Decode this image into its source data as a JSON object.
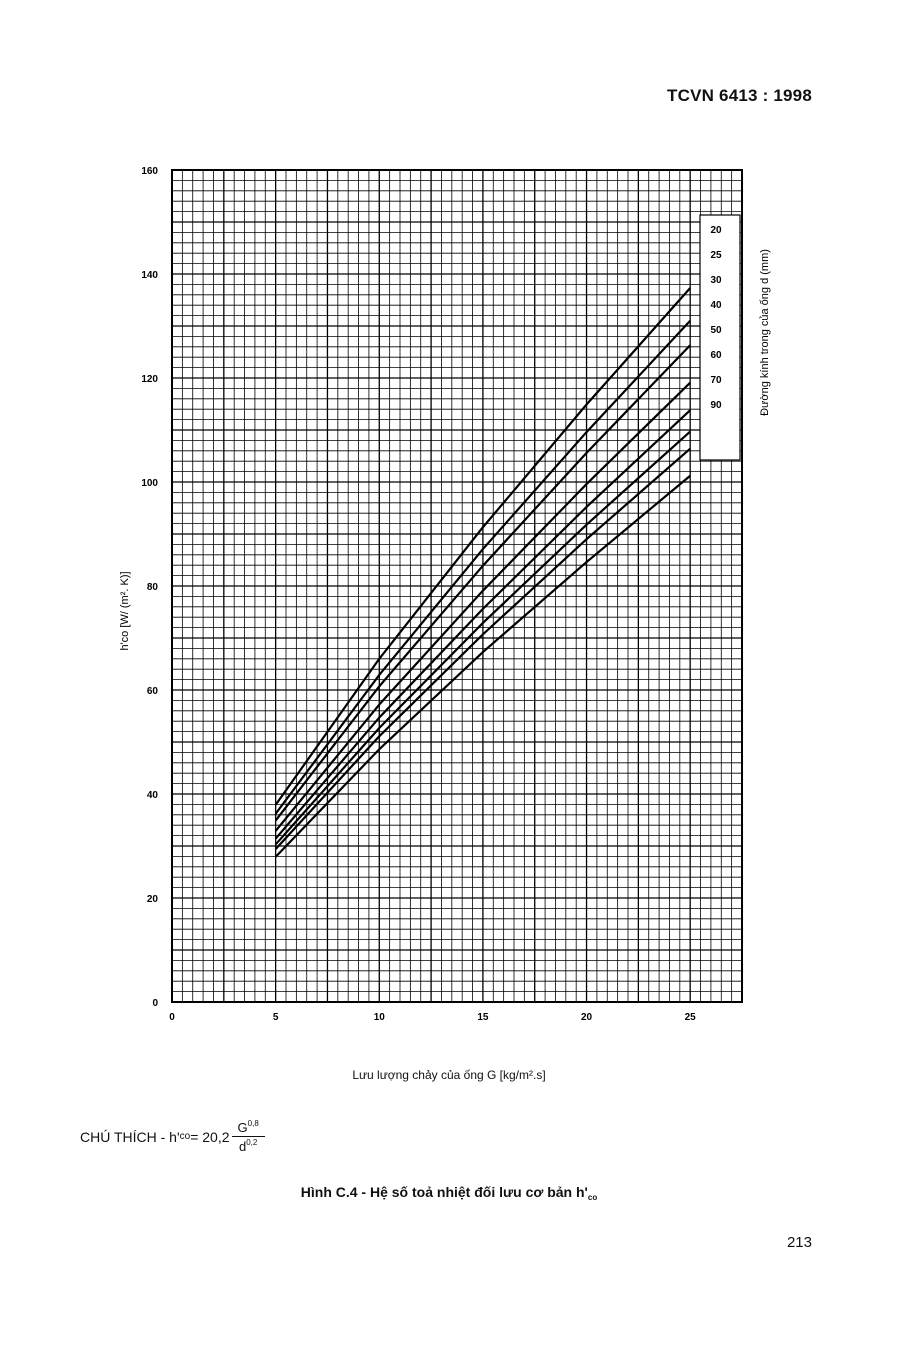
{
  "header": {
    "standard": "TCVN 6413 : 1998"
  },
  "chart_data": {
    "type": "line",
    "xlabel": "Lưu lượng chảy của ống G [kg/m².s]",
    "ylabel": "h'co [W/ (m². K)]",
    "legend_title": "Đường kính trong của ống d (mm)",
    "legend_placement": "right",
    "xlim": [
      0,
      27.5
    ],
    "ylim": [
      0,
      160
    ],
    "xticks": [
      0,
      5,
      10,
      15,
      20,
      25
    ],
    "yticks": [
      0,
      20,
      40,
      60,
      80,
      100,
      120,
      140,
      160
    ],
    "grid": true,
    "x": [
      5,
      10,
      15,
      20,
      25
    ],
    "series": [
      {
        "name": "20",
        "values": [
          37.9,
          66.0,
          91.3,
          114.9,
          137.3
        ]
      },
      {
        "name": "25",
        "values": [
          36.2,
          62.9,
          87.1,
          109.6,
          131.0
        ]
      },
      {
        "name": "30",
        "values": [
          34.9,
          60.7,
          83.9,
          105.6,
          126.3
        ]
      },
      {
        "name": "40",
        "values": [
          32.9,
          57.2,
          79.1,
          99.6,
          119.1
        ]
      },
      {
        "name": "50",
        "values": [
          31.4,
          54.7,
          75.6,
          95.2,
          113.8
        ]
      },
      {
        "name": "60",
        "values": [
          30.3,
          52.7,
          72.9,
          91.8,
          109.7
        ]
      },
      {
        "name": "70",
        "values": [
          29.4,
          51.1,
          70.7,
          89.0,
          106.4
        ]
      },
      {
        "name": "90",
        "values": [
          27.9,
          48.6,
          67.3,
          84.6,
          101.2
        ]
      }
    ]
  },
  "note": {
    "prefix": "CHÚ THÍCH - h'",
    "sub": "co",
    "eq": " = 20,2",
    "num": "G",
    "num_exp": "0,8",
    "den": "d",
    "den_exp": "0,2"
  },
  "caption": {
    "text": "Hình C.4 - Hệ số toả nhiệt đối lưu cơ bản h'",
    "sub": "co"
  },
  "page_number": "213"
}
